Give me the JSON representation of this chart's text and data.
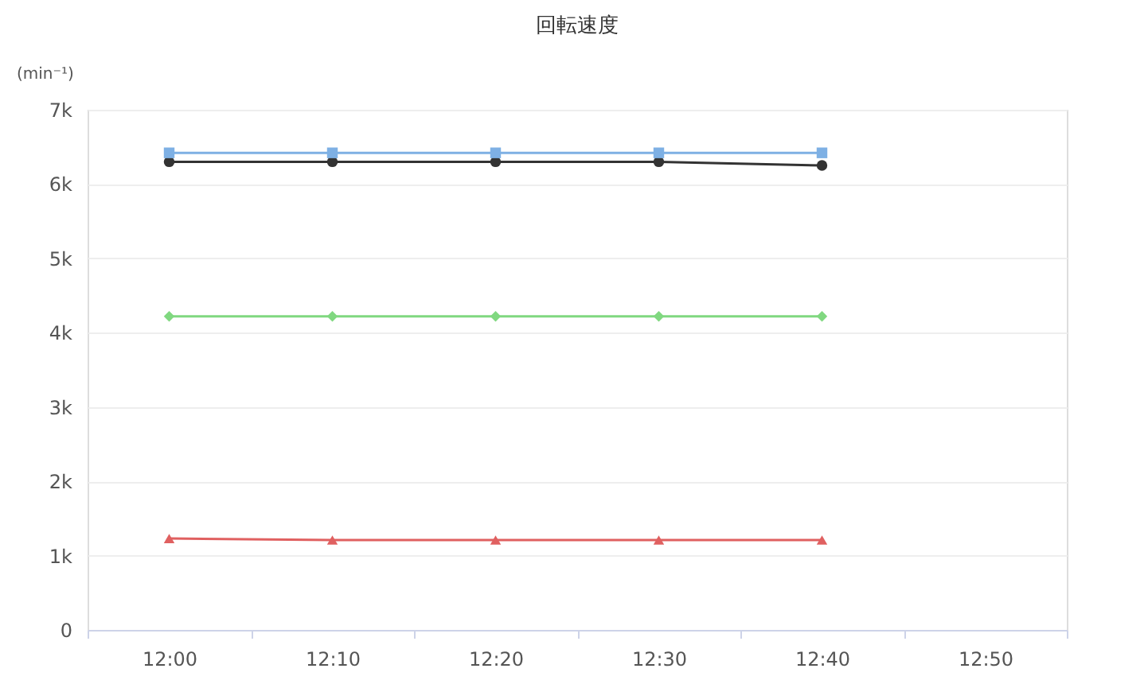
{
  "chart_data": {
    "type": "line",
    "title": "回転速度",
    "ylabel": "(min⁻¹)",
    "categories": [
      "12:00",
      "12:10",
      "12:20",
      "12:30",
      "12:40",
      "12:50"
    ],
    "series": [
      {
        "color": "#333333",
        "marker": "circle",
        "values": [
          6300,
          6300,
          6300,
          6300,
          6250,
          null
        ]
      },
      {
        "color": "#e06060",
        "marker": "triangle",
        "values": [
          1230,
          1210,
          1210,
          1210,
          1210,
          null
        ]
      },
      {
        "color": "#7eb0e4",
        "marker": "square",
        "values": [
          6420,
          6420,
          6420,
          6420,
          6420,
          null
        ]
      },
      {
        "color": "#80d880",
        "marker": "diamond",
        "values": [
          4220,
          4220,
          4220,
          4220,
          4220,
          null
        ]
      }
    ],
    "ylim": [
      0,
      7000
    ],
    "yticks": [
      0,
      {
        "value": 1000,
        "label": "1k"
      },
      {
        "value": 2000,
        "label": "2k"
      },
      {
        "value": 3000,
        "label": "3k"
      },
      {
        "value": 4000,
        "label": "4k"
      },
      {
        "value": 5000,
        "label": "5k"
      },
      {
        "value": 6000,
        "label": "6k"
      },
      {
        "value": 7000,
        "label": "7k"
      }
    ],
    "grid": "y",
    "line_style": "solid"
  }
}
